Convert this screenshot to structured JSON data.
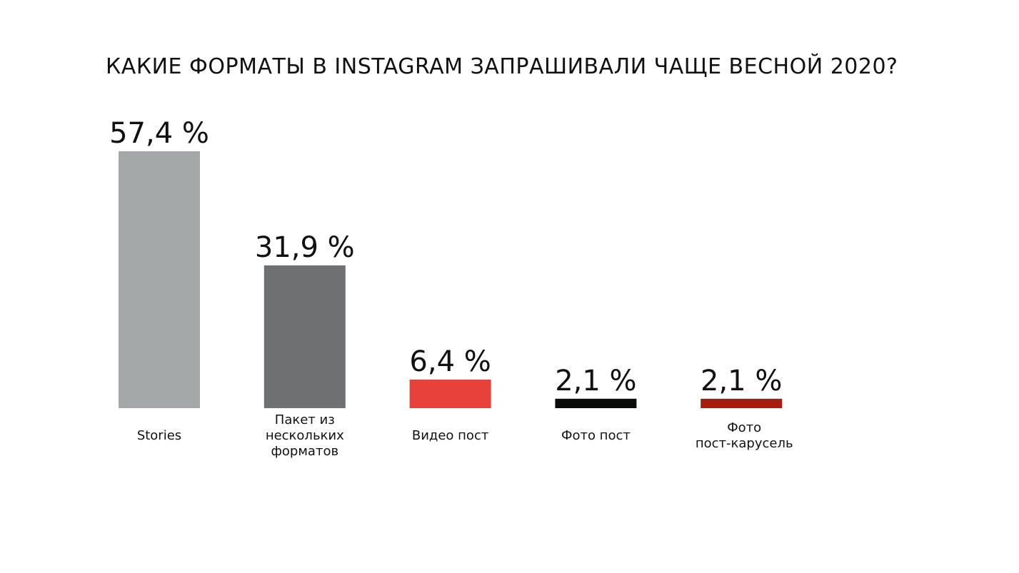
{
  "title": "КАКИЕ ФОРМАТЫ В INSTAGRAM ЗАПРАШИВАЛИ ЧАЩЕ ВЕСНОЙ 2020?",
  "chart_data": {
    "type": "bar",
    "title": "КАКИЕ ФОРМАТЫ В INSTAGRAM ЗАПРАШИВАЛИ ЧАЩЕ ВЕСНОЙ 2020?",
    "xlabel": "",
    "ylabel": "",
    "unit": "%",
    "grid": false,
    "legend": "none",
    "ylim": [
      0,
      57.4
    ],
    "categories": [
      [
        "Stories"
      ],
      [
        "Пакет из",
        "нескольких",
        "форматов"
      ],
      [
        "Видео пост"
      ],
      [
        "Фото пост"
      ],
      [
        "Фото",
        "пост-карусель"
      ]
    ],
    "values": [
      57.4,
      31.9,
      6.4,
      2.1,
      2.1
    ],
    "value_labels": [
      "57,4 %",
      "31,9 %",
      "6,4 %",
      "2,1 %",
      "2,1 %"
    ],
    "colors": [
      "#a5a8a8",
      "#6e7071",
      "#e8403b",
      "#0a0c09",
      "#a81c0e"
    ]
  }
}
